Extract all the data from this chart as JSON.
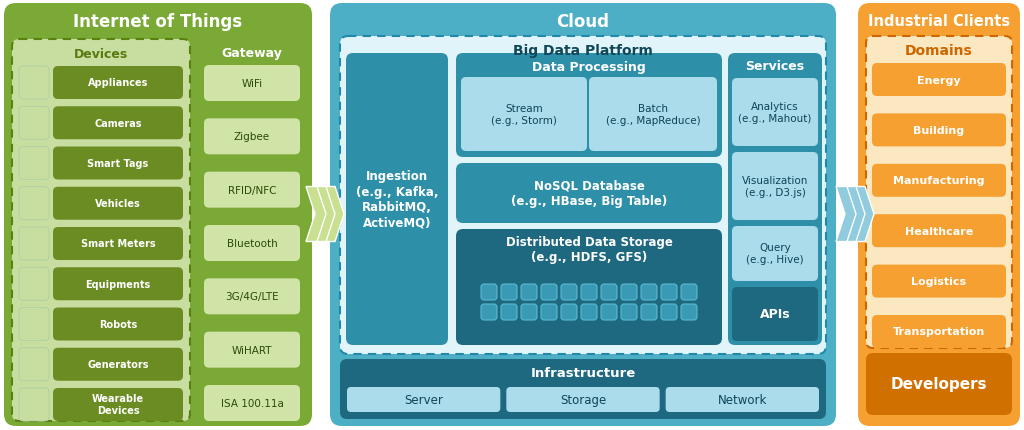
{
  "fig_width": 10.24,
  "fig_height": 4.31,
  "bg_color": "#ffffff",
  "iot_bg": "#7aaa35",
  "iot_title": "Internet of Things",
  "devices_title": "Devices",
  "devices_btn_color": "#6b8c22",
  "devices_inner_bg": "#c8dda0",
  "devices": [
    "Appliances",
    "Cameras",
    "Smart Tags",
    "Vehicles",
    "Smart Meters",
    "Equipments",
    "Robots",
    "Generators",
    "Wearable\nDevices"
  ],
  "gateway_title": "Gateway",
  "gateway_btn_bg": "#d0e4a8",
  "gateway_items": [
    "WiFi",
    "Zigbee",
    "RFID/NFC",
    "Bluetooth",
    "3G/4G/LTE",
    "WiHART",
    "ISA 100.11a"
  ],
  "cloud_bg": "#4dafc5",
  "cloud_title": "Cloud",
  "bdp_title": "Big Data Platform",
  "bdp_inner_bg": "#e0f4fa",
  "ingestion_bg": "#2e8fa8",
  "ingestion_text": "Ingestion\n(e.g., Kafka,\nRabbitMQ,\nActiveMQ)",
  "dp_bg": "#2e8fa8",
  "dp_title": "Data Processing",
  "stream_bg": "#aadcec",
  "stream_text": "Stream\n(e.g., Storm)",
  "batch_bg": "#aadcec",
  "batch_text": "Batch\n(e.g., MapReduce)",
  "nosql_bg": "#2e8fa8",
  "nosql_text": "NoSQL Database\n(e.g., HBase, Big Table)",
  "dds_bg": "#1e6880",
  "dds_text": "Distributed Data Storage\n(e.g., HDFS, GFS)",
  "dds_sq_color": "#3a9ab5",
  "services_bg": "#2e8fa8",
  "services_title": "Services",
  "analytics_bg": "#aadcec",
  "analytics_text": "Analytics\n(e.g., Mahout)",
  "viz_bg": "#aadcec",
  "viz_text": "Visualization\n(e.g., D3.js)",
  "query_bg": "#aadcec",
  "query_text": "Query\n(e.g., Hive)",
  "apis_bg": "#1e6880",
  "apis_text": "APIs",
  "infra_bg": "#1e6880",
  "infra_title": "Infrastructure",
  "infra_items": [
    "Server",
    "Storage",
    "Network"
  ],
  "infra_item_bg": "#aadcec",
  "ic_bg": "#f5a030",
  "ic_title": "Industrial Clients",
  "domains_title": "Domains",
  "domains_title_color": "#cc6600",
  "domains_inner_bg": "#fce8c0",
  "domains_btn_color": "#f5a030",
  "domains": [
    "Energy",
    "Building",
    "Manufacturing",
    "Healthcare",
    "Logistics",
    "Transportation"
  ],
  "developers_bg": "#d07000",
  "developers_text": "Developers",
  "iot_arrow_color": "#c8e090",
  "cloud_arrow_color": "#90ccde"
}
